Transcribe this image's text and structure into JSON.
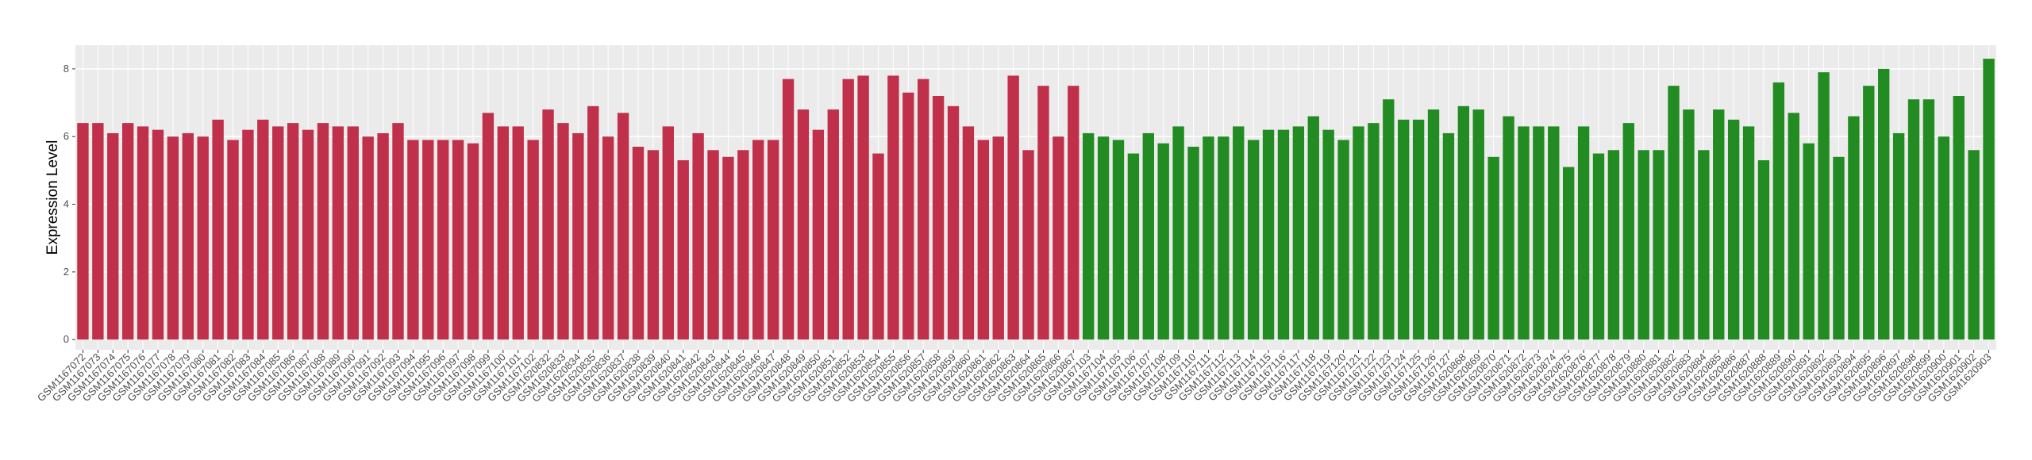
{
  "chart_data": {
    "type": "bar",
    "y_label": "Expression Level",
    "categories": [
      "GSM1167072",
      "GSM1167073",
      "GSM1167074",
      "GSM1167075",
      "GSM1167076",
      "GSM1167077",
      "GSM1167078",
      "GSM1167079",
      "GSM1167080",
      "GSM1167081",
      "GSM1167082",
      "GSM1167083",
      "GSM1167084",
      "GSM1167085",
      "GSM1167086",
      "GSM1167087",
      "GSM1167088",
      "GSM1167089",
      "GSM1167090",
      "GSM1167091",
      "GSM1167092",
      "GSM1167093",
      "GSM1167094",
      "GSM1167095",
      "GSM1167096",
      "GSM1167097",
      "GSM1167098",
      "GSM1167099",
      "GSM1167100",
      "GSM1167101",
      "GSM1167102",
      "GSM1620832",
      "GSM1620833",
      "GSM1620834",
      "GSM1620835",
      "GSM1620836",
      "GSM1620837",
      "GSM1620838",
      "GSM1620839",
      "GSM1620840",
      "GSM1620841",
      "GSM1620842",
      "GSM1620843",
      "GSM1620844",
      "GSM1620845",
      "GSM1620846",
      "GSM1620847",
      "GSM1620848",
      "GSM1620849",
      "GSM1620850",
      "GSM1620851",
      "GSM1620852",
      "GSM1620853",
      "GSM1620854",
      "GSM1620855",
      "GSM1620856",
      "GSM1620857",
      "GSM1620858",
      "GSM1620859",
      "GSM1620860",
      "GSM1620861",
      "GSM1620862",
      "GSM1620863",
      "GSM1620864",
      "GSM1620865",
      "GSM1620866",
      "GSM1620867",
      "GSM1167103",
      "GSM1167104",
      "GSM1167105",
      "GSM1167106",
      "GSM1167107",
      "GSM1167108",
      "GSM1167109",
      "GSM1167110",
      "GSM1167111",
      "GSM1167112",
      "GSM1167113",
      "GSM1167114",
      "GSM1167115",
      "GSM1167116",
      "GSM1167117",
      "GSM1167118",
      "GSM1167119",
      "GSM1167120",
      "GSM1167121",
      "GSM1167122",
      "GSM1167123",
      "GSM1167124",
      "GSM1167125",
      "GSM1167126",
      "GSM1167127",
      "GSM1620868",
      "GSM1620869",
      "GSM1620870",
      "GSM1620871",
      "GSM1620872",
      "GSM1620873",
      "GSM1620874",
      "GSM1620875",
      "GSM1620876",
      "GSM1620877",
      "GSM1620878",
      "GSM1620879",
      "GSM1620880",
      "GSM1620881",
      "GSM1620882",
      "GSM1620883",
      "GSM1620884",
      "GSM1620885",
      "GSM1620886",
      "GSM1620887",
      "GSM1620888",
      "GSM1620889",
      "GSM1620890",
      "GSM1620891",
      "GSM1620892",
      "GSM1620893",
      "GSM1620894",
      "GSM1620895",
      "GSM1620896",
      "GSM1620897",
      "GSM1620898",
      "GSM1620899",
      "GSM1620900",
      "GSM1620901",
      "GSM1620902",
      "GSM1620903"
    ],
    "values": [
      6.4,
      6.4,
      6.1,
      6.4,
      6.3,
      6.2,
      6.0,
      6.1,
      6.0,
      6.5,
      5.9,
      6.2,
      6.5,
      6.3,
      6.4,
      6.2,
      6.4,
      6.3,
      6.3,
      6.0,
      6.1,
      6.4,
      5.9,
      5.9,
      5.9,
      5.9,
      5.8,
      6.7,
      6.3,
      6.3,
      5.9,
      6.8,
      6.4,
      6.1,
      6.9,
      6.0,
      6.7,
      5.7,
      5.6,
      6.3,
      5.3,
      6.1,
      5.6,
      5.4,
      5.6,
      5.9,
      5.9,
      7.7,
      6.8,
      6.2,
      6.8,
      7.7,
      7.8,
      5.5,
      7.8,
      7.3,
      7.7,
      7.2,
      6.9,
      6.3,
      5.9,
      6.0,
      7.8,
      5.6,
      7.5,
      6.0,
      7.5,
      6.1,
      6.0,
      5.9,
      5.5,
      6.1,
      5.8,
      6.3,
      5.7,
      6.0,
      6.0,
      6.3,
      5.9,
      6.2,
      6.2,
      6.3,
      6.6,
      6.2,
      5.9,
      6.3,
      6.4,
      7.1,
      6.5,
      6.5,
      6.8,
      6.1,
      6.9,
      6.8,
      5.4,
      6.6,
      6.3,
      6.3,
      6.3,
      5.1,
      6.3,
      5.5,
      5.6,
      6.4,
      5.6,
      5.6,
      7.5,
      6.8,
      5.6,
      6.8,
      6.5,
      6.3,
      5.3,
      7.6,
      6.7,
      5.8,
      7.9,
      5.4,
      6.6,
      7.5,
      8.0,
      6.1,
      7.1,
      7.1,
      6.0,
      7.2,
      5.6,
      8.3
    ],
    "colors": [
      "#c0304a",
      "#c0304a",
      "#c0304a",
      "#c0304a",
      "#c0304a",
      "#c0304a",
      "#c0304a",
      "#c0304a",
      "#c0304a",
      "#c0304a",
      "#c0304a",
      "#c0304a",
      "#c0304a",
      "#c0304a",
      "#c0304a",
      "#c0304a",
      "#c0304a",
      "#c0304a",
      "#c0304a",
      "#c0304a",
      "#c0304a",
      "#c0304a",
      "#c0304a",
      "#c0304a",
      "#c0304a",
      "#c0304a",
      "#c0304a",
      "#c0304a",
      "#c0304a",
      "#c0304a",
      "#c0304a",
      "#c0304a",
      "#c0304a",
      "#c0304a",
      "#c0304a",
      "#c0304a",
      "#c0304a",
      "#c0304a",
      "#c0304a",
      "#c0304a",
      "#c0304a",
      "#c0304a",
      "#c0304a",
      "#c0304a",
      "#c0304a",
      "#c0304a",
      "#c0304a",
      "#c0304a",
      "#c0304a",
      "#c0304a",
      "#c0304a",
      "#c0304a",
      "#c0304a",
      "#c0304a",
      "#c0304a",
      "#c0304a",
      "#c0304a",
      "#c0304a",
      "#c0304a",
      "#c0304a",
      "#c0304a",
      "#c0304a",
      "#c0304a",
      "#c0304a",
      "#c0304a",
      "#c0304a",
      "#c0304a",
      "#228b22",
      "#228b22",
      "#228b22",
      "#228b22",
      "#228b22",
      "#228b22",
      "#228b22",
      "#228b22",
      "#228b22",
      "#228b22",
      "#228b22",
      "#228b22",
      "#228b22",
      "#228b22",
      "#228b22",
      "#228b22",
      "#228b22",
      "#228b22",
      "#228b22",
      "#228b22",
      "#228b22",
      "#228b22",
      "#228b22",
      "#228b22",
      "#228b22",
      "#228b22",
      "#228b22",
      "#228b22",
      "#228b22",
      "#228b22",
      "#228b22",
      "#228b22",
      "#228b22",
      "#228b22",
      "#228b22",
      "#228b22",
      "#228b22",
      "#228b22",
      "#228b22",
      "#228b22",
      "#228b22",
      "#228b22",
      "#228b22",
      "#228b22",
      "#228b22",
      "#228b22",
      "#228b22",
      "#228b22",
      "#228b22",
      "#228b22",
      "#228b22",
      "#228b22",
      "#228b22",
      "#228b22",
      "#228b22",
      "#228b22",
      "#228b22",
      "#228b22",
      "#228b22",
      "#228b22",
      "#228b22"
    ],
    "ylim": [
      -0.3,
      8.7
    ],
    "yticks": [
      0,
      2,
      4,
      6,
      8
    ],
    "grid": true
  }
}
